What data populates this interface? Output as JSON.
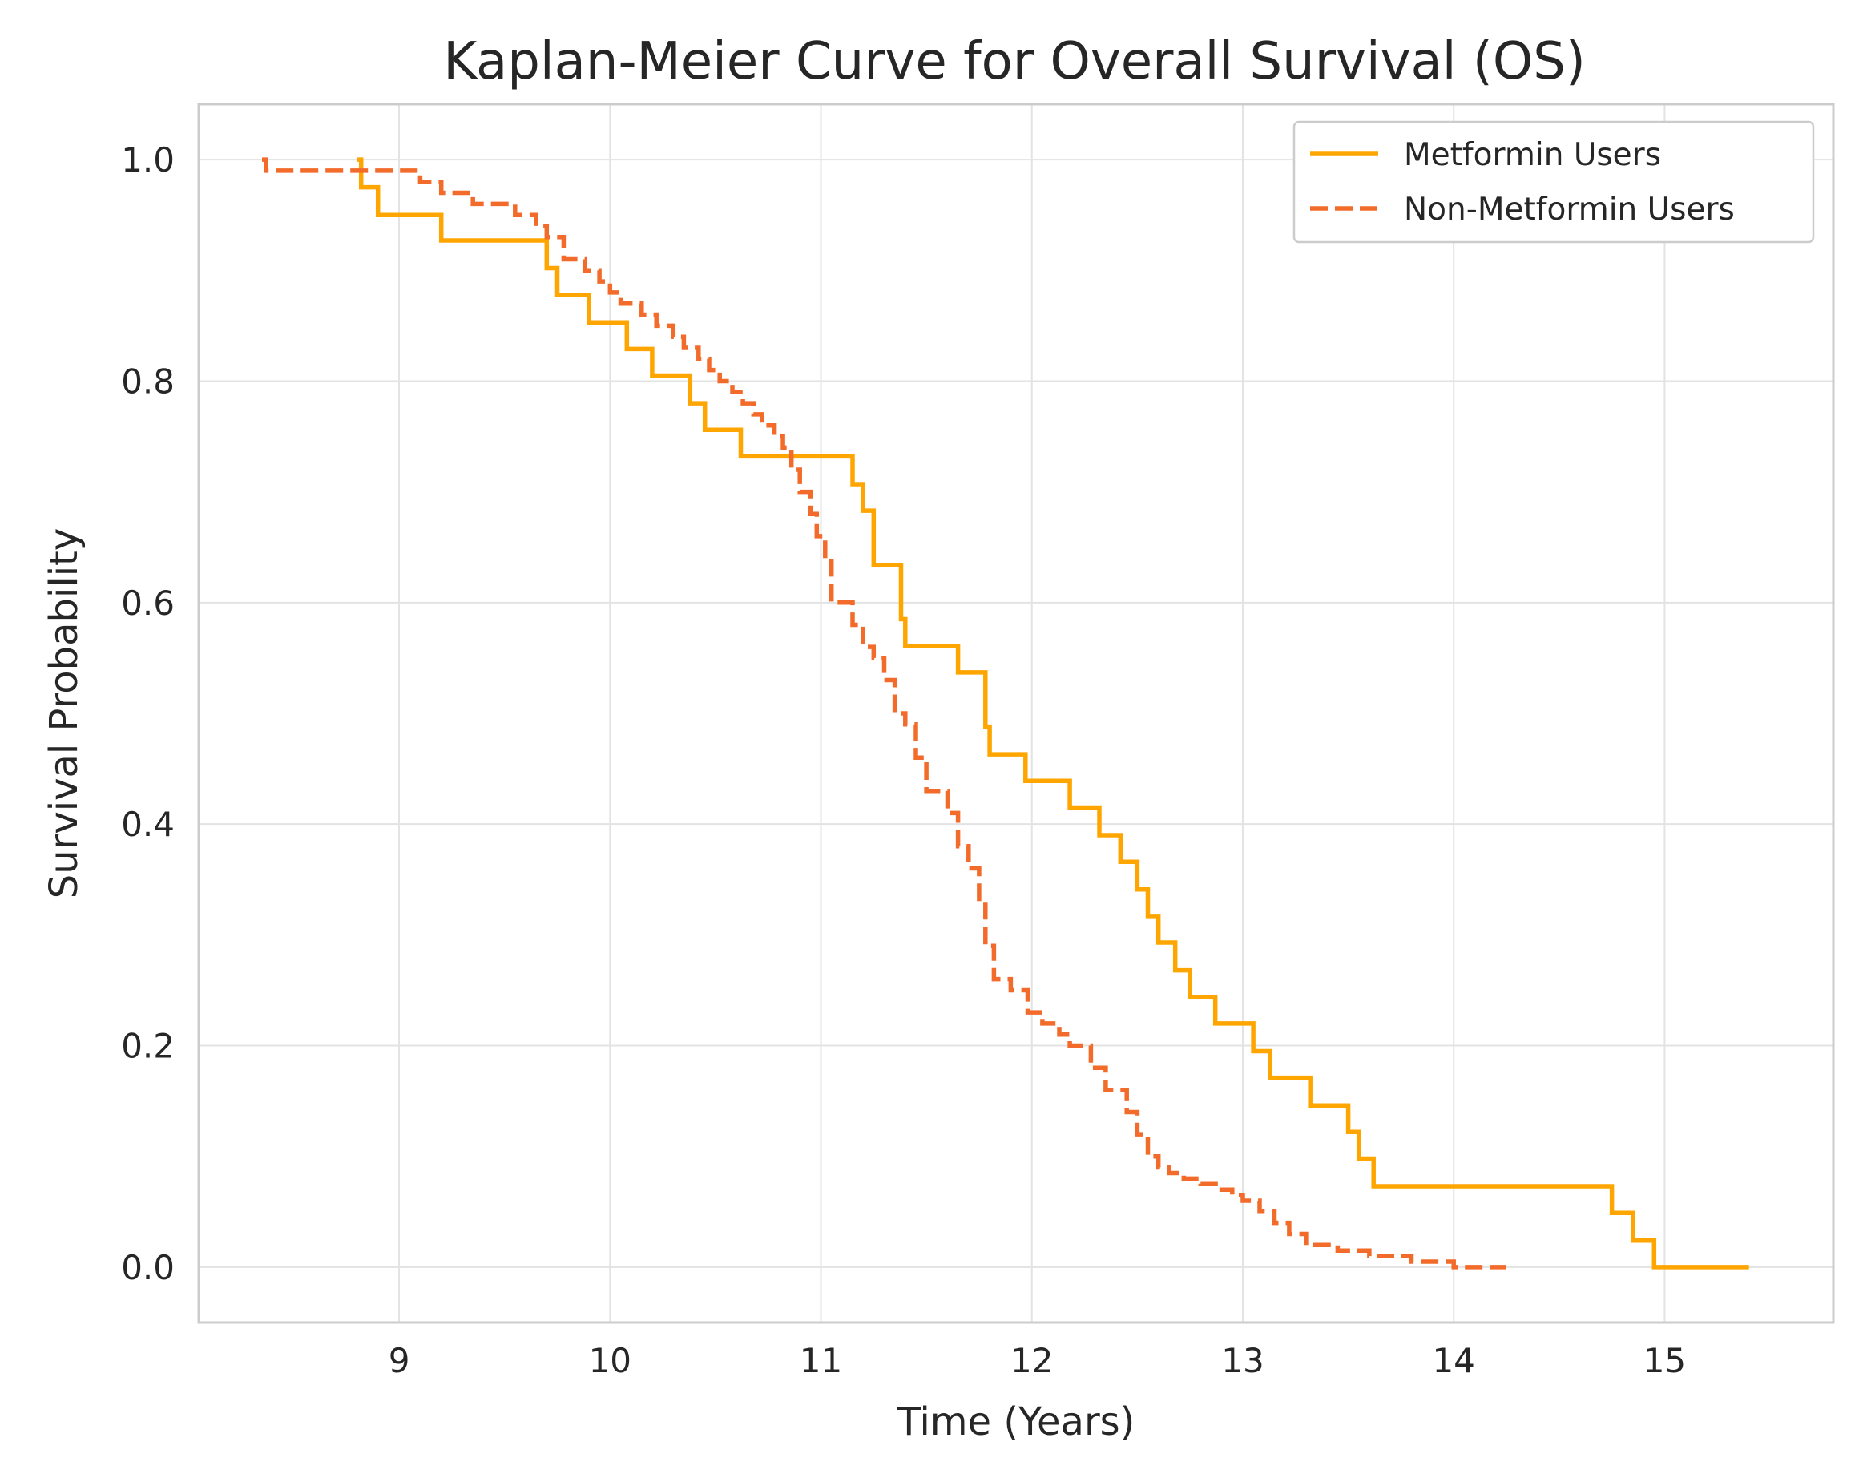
{
  "chart_data": {
    "type": "line",
    "step": true,
    "title": "Kaplan-Meier Curve for Overall Survival (OS)",
    "xlabel": "Time (Years)",
    "ylabel": "Survival Probability",
    "xlim": [
      8.05,
      15.8
    ],
    "ylim": [
      -0.05,
      1.05
    ],
    "xticks": [
      9,
      10,
      11,
      12,
      13,
      14,
      15
    ],
    "xtick_labels": [
      "9",
      "10",
      "11",
      "12",
      "13",
      "14",
      "15"
    ],
    "yticks": [
      0.0,
      0.2,
      0.4,
      0.6,
      0.8,
      1.0
    ],
    "ytick_labels": [
      "0.0",
      "0.2",
      "0.4",
      "0.6",
      "0.8",
      "1.0"
    ],
    "grid": true,
    "legend_position": "top-right",
    "series": [
      {
        "name": "Metformin Users",
        "color": "#FFA500",
        "dash": "solid",
        "x": [
          8.8,
          8.82,
          8.9,
          9.2,
          9.7,
          9.75,
          9.9,
          10.08,
          10.2,
          10.38,
          10.45,
          10.62,
          11.15,
          11.2,
          11.25,
          11.38,
          11.4,
          11.65,
          11.78,
          11.8,
          11.97,
          12.18,
          12.32,
          12.42,
          12.5,
          12.55,
          12.6,
          12.68,
          12.75,
          12.87,
          13.05,
          13.13,
          13.32,
          13.5,
          13.55,
          13.62,
          14.75,
          14.85,
          14.95,
          15.4
        ],
        "y": [
          1.0,
          0.975,
          0.95,
          0.927,
          0.902,
          0.878,
          0.853,
          0.829,
          0.805,
          0.78,
          0.756,
          0.732,
          0.707,
          0.683,
          0.634,
          0.585,
          0.561,
          0.537,
          0.488,
          0.463,
          0.439,
          0.415,
          0.39,
          0.366,
          0.341,
          0.317,
          0.293,
          0.268,
          0.244,
          0.22,
          0.195,
          0.171,
          0.146,
          0.122,
          0.098,
          0.073,
          0.049,
          0.024,
          0.0,
          0.0
        ]
      },
      {
        "name": "Non-Metformin Users",
        "color": "#F26B2A",
        "dash": "dashed",
        "x": [
          8.35,
          8.37,
          9.1,
          9.2,
          9.35,
          9.55,
          9.65,
          9.7,
          9.78,
          9.88,
          9.95,
          10.0,
          10.05,
          10.15,
          10.22,
          10.3,
          10.35,
          10.42,
          10.47,
          10.52,
          10.58,
          10.63,
          10.68,
          10.72,
          10.78,
          10.82,
          10.86,
          10.9,
          10.95,
          10.98,
          11.02,
          11.05,
          11.15,
          11.2,
          11.25,
          11.3,
          11.35,
          11.4,
          11.45,
          11.5,
          11.6,
          11.65,
          11.7,
          11.75,
          11.78,
          11.82,
          11.9,
          11.98,
          12.05,
          12.13,
          12.18,
          12.28,
          12.35,
          12.45,
          12.5,
          12.55,
          12.6,
          12.65,
          12.72,
          12.8,
          12.9,
          12.95,
          13.0,
          13.08,
          13.15,
          13.22,
          13.3,
          13.45,
          13.6,
          13.8,
          14.0,
          14.25
        ],
        "y": [
          1.0,
          0.99,
          0.98,
          0.97,
          0.96,
          0.95,
          0.94,
          0.93,
          0.91,
          0.9,
          0.89,
          0.88,
          0.87,
          0.86,
          0.85,
          0.84,
          0.83,
          0.82,
          0.81,
          0.8,
          0.79,
          0.78,
          0.77,
          0.76,
          0.75,
          0.74,
          0.72,
          0.7,
          0.68,
          0.66,
          0.64,
          0.6,
          0.58,
          0.56,
          0.55,
          0.53,
          0.5,
          0.49,
          0.46,
          0.43,
          0.41,
          0.38,
          0.36,
          0.33,
          0.29,
          0.26,
          0.25,
          0.23,
          0.22,
          0.21,
          0.2,
          0.18,
          0.16,
          0.14,
          0.12,
          0.1,
          0.09,
          0.085,
          0.08,
          0.075,
          0.07,
          0.065,
          0.06,
          0.05,
          0.04,
          0.03,
          0.02,
          0.015,
          0.01,
          0.005,
          0.0,
          0.0
        ]
      }
    ]
  }
}
